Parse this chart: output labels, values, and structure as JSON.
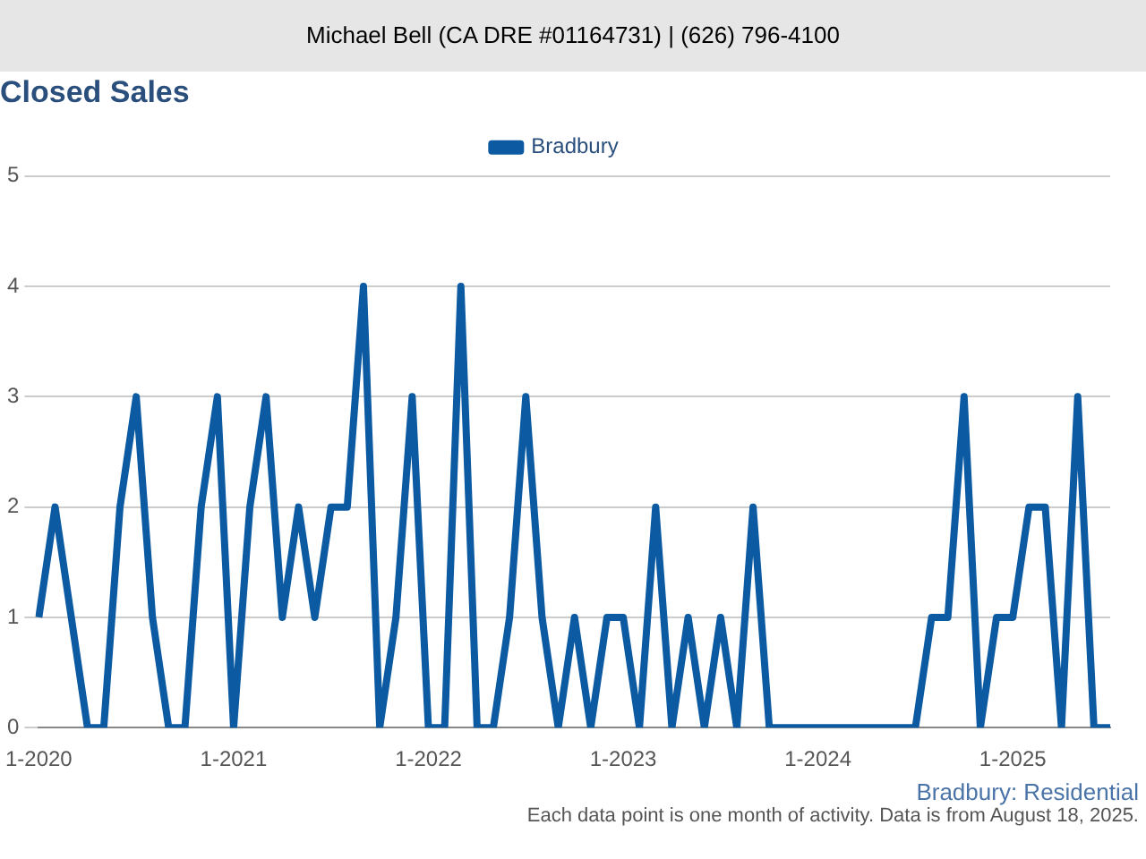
{
  "chart_data": {
    "type": "line",
    "title": "Closed Sales",
    "categories": [
      "1-2020",
      null,
      null,
      null,
      null,
      null,
      null,
      null,
      null,
      null,
      null,
      null,
      "1-2021",
      null,
      null,
      null,
      null,
      null,
      null,
      null,
      null,
      null,
      null,
      null,
      "1-2022",
      null,
      null,
      null,
      null,
      null,
      null,
      null,
      null,
      null,
      null,
      null,
      "1-2023",
      null,
      null,
      null,
      null,
      null,
      null,
      null,
      null,
      null,
      null,
      null,
      "1-2024",
      null,
      null,
      null,
      null,
      null,
      null,
      null,
      null,
      null,
      null,
      null,
      "1-2025",
      null,
      null,
      null,
      null,
      null,
      null
    ],
    "series": [
      {
        "name": "Bradbury",
        "color": "#0b5aa2",
        "values": [
          1,
          2,
          1,
          0,
          0,
          2,
          3,
          1,
          0,
          0,
          2,
          3,
          0,
          2,
          3,
          1,
          2,
          1,
          2,
          2,
          4,
          0,
          1,
          3,
          0,
          0,
          4,
          0,
          0,
          1,
          3,
          1,
          0,
          1,
          0,
          1,
          1,
          0,
          2,
          0,
          1,
          0,
          1,
          0,
          2,
          0,
          0,
          0,
          0,
          0,
          0,
          0,
          0,
          0,
          0,
          1,
          1,
          3,
          0,
          1,
          1,
          2,
          2,
          0,
          3,
          0,
          0
        ]
      }
    ],
    "ylim": [
      0,
      5
    ],
    "yticks": [
      0,
      1,
      2,
      3,
      4,
      5
    ],
    "grid": "y",
    "legend": "top",
    "marker": "none",
    "line_style": "solid",
    "annotations": [
      "Michael Bell (CA DRE #01164731) | (626) 796-4100",
      "Bradbury: Residential",
      "Each data point is one month of activity. Data is from August 18, 2025."
    ]
  }
}
